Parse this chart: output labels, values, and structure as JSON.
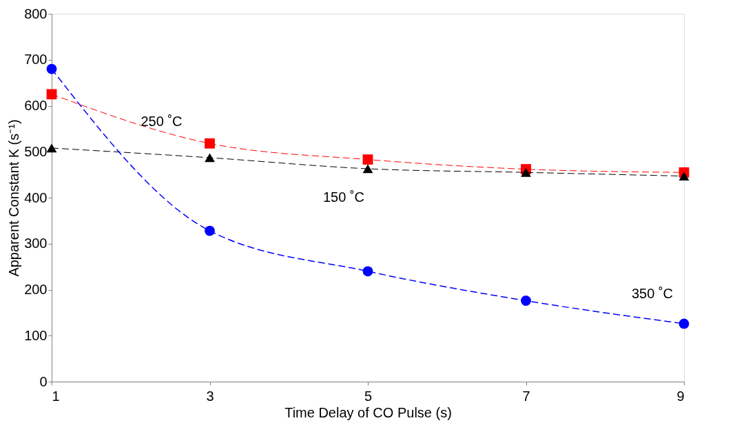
{
  "chart_data": {
    "type": "line",
    "xlabel": "Time Delay of CO Pulse (s)",
    "ylabel": "Apparent Constant K (s⁻¹)",
    "x": [
      1,
      3,
      5,
      7,
      9
    ],
    "series": [
      {
        "name": "250 ˚C",
        "color": "#ff0000",
        "marker": "square",
        "values": [
          625,
          518,
          483,
          462,
          455
        ]
      },
      {
        "name": "150 ˚C",
        "color": "#000000",
        "marker": "triangle",
        "values": [
          508,
          487,
          463,
          455,
          447
        ]
      },
      {
        "name": "350 ˚C",
        "color": "#0000ff",
        "marker": "circle",
        "values": [
          680,
          328,
          240,
          176,
          126
        ]
      }
    ],
    "line_style": "dashed",
    "grid": false,
    "xlim": [
      1,
      9
    ],
    "xticks": [
      1,
      3,
      5,
      7,
      9
    ],
    "ylim": [
      0,
      800
    ],
    "yticks": [
      0,
      100,
      200,
      300,
      400,
      500,
      600,
      700,
      800
    ]
  }
}
